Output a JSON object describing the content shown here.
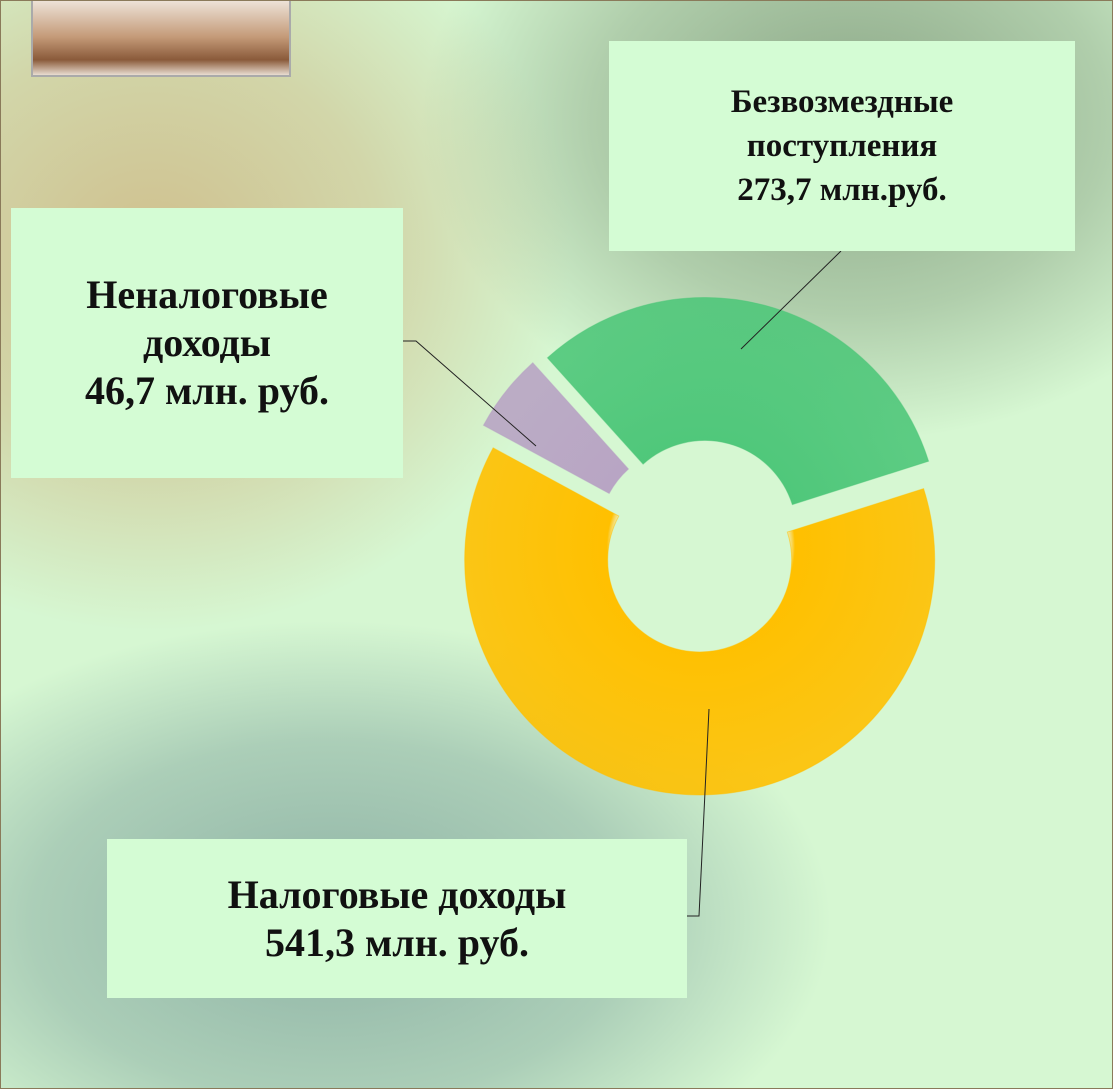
{
  "chart_data": {
    "type": "donut",
    "categories": [
      "Безвозмездные поступления",
      "Налоговые доходы",
      "Неналоговые доходы"
    ],
    "values": [
      273.7,
      541.3,
      46.7
    ],
    "value_labels": [
      "273,7 млн.руб.",
      "541,3 млн. руб.",
      "46,7 млн. руб."
    ],
    "colors": [
      "#4fc77a",
      "#ffc000",
      "#b8a4c4"
    ]
  }
}
